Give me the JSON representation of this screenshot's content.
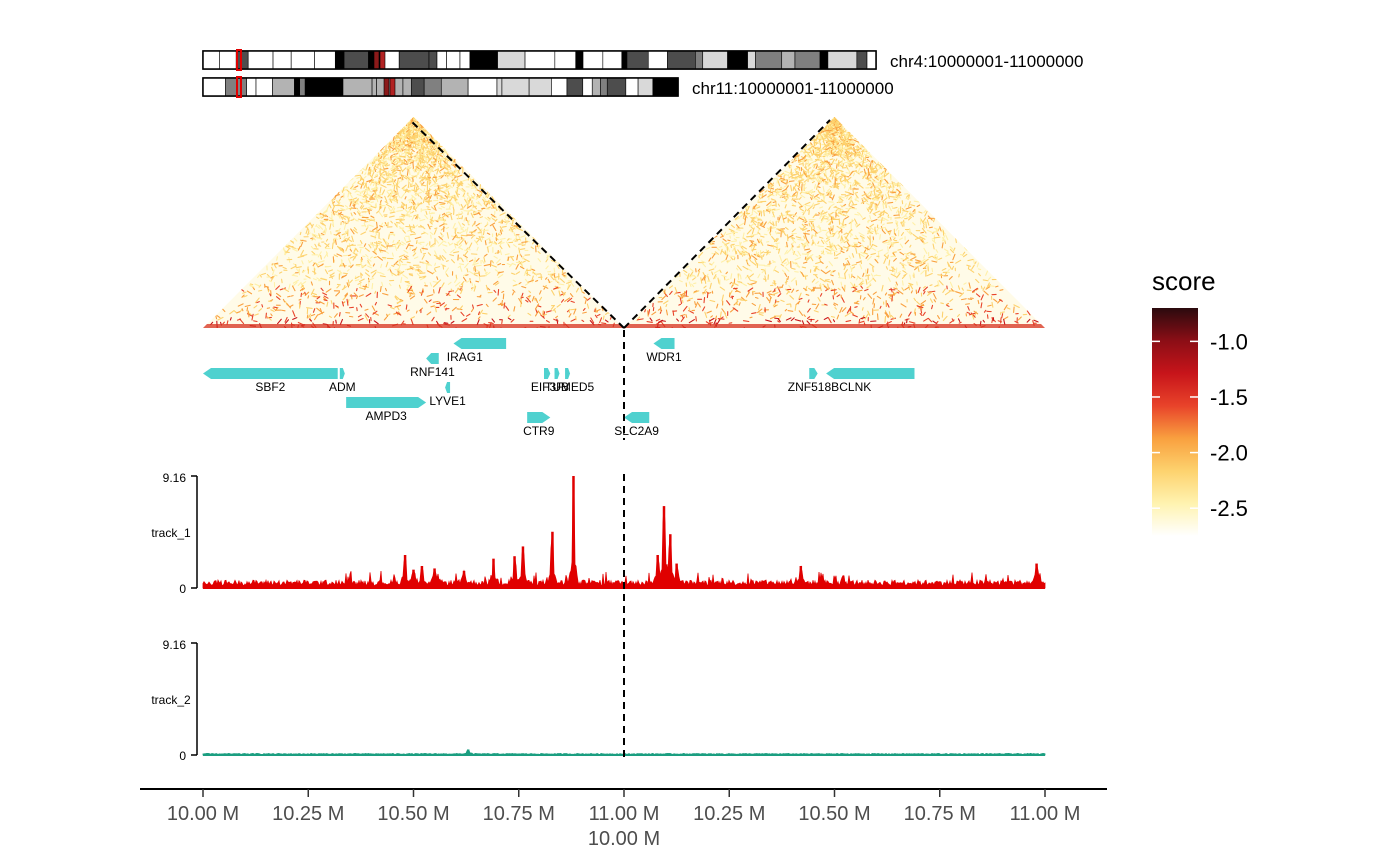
{
  "chart_data": {
    "type": "genome-browser",
    "ideograms": [
      {
        "region": "chr4:10000001-11000000"
      },
      {
        "region": "chr11:10000001-11000000"
      }
    ],
    "heatmap": {
      "legend_title": "score",
      "scale_ticks": [
        -1.0,
        -1.5,
        -2.0,
        -2.5
      ],
      "scale_tick_labels": [
        "-1.0",
        "-1.5",
        "-2.0",
        "-2.5"
      ],
      "range": [
        -2.75,
        -0.7
      ],
      "colors": [
        "#ffffff",
        "#fff3b0",
        "#fdd26e",
        "#f9a03f",
        "#e8432a",
        "#c7141a",
        "#8b0e16",
        "#2b0a0e"
      ]
    },
    "genes": [
      {
        "name": "SBF2",
        "start": 10.0,
        "end": 10.32,
        "strand": "-",
        "row": 1,
        "segment": 0
      },
      {
        "name": "ADM",
        "start": 10.325,
        "end": 10.33,
        "strand": "+",
        "row": 1,
        "segment": 0
      },
      {
        "name": "AMPD3",
        "start": 10.34,
        "end": 10.53,
        "strand": "+",
        "row": 2,
        "segment": 0
      },
      {
        "name": "RNF141",
        "start": 10.53,
        "end": 10.56,
        "strand": "-",
        "row": 0.5,
        "segment": 0
      },
      {
        "name": "LYVE1",
        "start": 10.575,
        "end": 10.585,
        "strand": "-",
        "row": 1.5,
        "segment": 0
      },
      {
        "name": "IRAG1",
        "start": 10.595,
        "end": 10.72,
        "strand": "-",
        "row": 0,
        "segment": 0
      },
      {
        "name": "EIF3F",
        "start": 10.81,
        "end": 10.825,
        "strand": "+",
        "row": 1,
        "segment": 0
      },
      {
        "name": "TUB",
        "start": 10.835,
        "end": 10.84,
        "strand": "+",
        "row": 1,
        "segment": 0
      },
      {
        "name": "MED5",
        "start": 10.86,
        "end": 10.87,
        "strand": "+",
        "row": 1,
        "segment": 0
      },
      {
        "name": "CTR9",
        "start": 10.77,
        "end": 10.825,
        "strand": "+",
        "row": 3,
        "segment": 0
      },
      {
        "name": "SLC2A9",
        "start": 10.0,
        "end": 10.06,
        "strand": "-",
        "row": 3,
        "segment": 1
      },
      {
        "name": "WDR1",
        "start": 10.07,
        "end": 10.12,
        "strand": "-",
        "row": 0,
        "segment": 1
      },
      {
        "name": "ZNF518B",
        "start": 10.44,
        "end": 10.46,
        "strand": "+",
        "row": 1,
        "segment": 1
      },
      {
        "name": "CLNK",
        "start": 10.48,
        "end": 10.69,
        "strand": "-",
        "row": 1,
        "segment": 1
      }
    ],
    "tracks": [
      {
        "name": "track_1",
        "ymax_label": "9.16",
        "ymin_label": "0",
        "ylim": [
          0,
          9.16
        ],
        "color": "#e00000",
        "peaks": [
          {
            "segment": 0,
            "pos": 10.48,
            "value": 2.7
          },
          {
            "segment": 0,
            "pos": 10.5,
            "value": 1.5
          },
          {
            "segment": 0,
            "pos": 10.52,
            "value": 1.8
          },
          {
            "segment": 0,
            "pos": 10.55,
            "value": 1.6
          },
          {
            "segment": 0,
            "pos": 10.62,
            "value": 1.4
          },
          {
            "segment": 0,
            "pos": 10.69,
            "value": 2.4
          },
          {
            "segment": 0,
            "pos": 10.74,
            "value": 2.6
          },
          {
            "segment": 0,
            "pos": 10.76,
            "value": 3.4
          },
          {
            "segment": 0,
            "pos": 10.83,
            "value": 4.6
          },
          {
            "segment": 0,
            "pos": 10.88,
            "value": 9.16
          },
          {
            "segment": 1,
            "pos": 10.08,
            "value": 2.7
          },
          {
            "segment": 1,
            "pos": 10.095,
            "value": 6.7
          },
          {
            "segment": 1,
            "pos": 10.11,
            "value": 4.4
          },
          {
            "segment": 1,
            "pos": 10.125,
            "value": 2.0
          },
          {
            "segment": 1,
            "pos": 10.42,
            "value": 1.8
          },
          {
            "segment": 1,
            "pos": 10.98,
            "value": 2.0
          }
        ]
      },
      {
        "name": "track_2",
        "ymax_label": "9.16",
        "ymin_label": "0",
        "ylim": [
          0,
          9.16
        ],
        "color": "#1a9e80",
        "peaks": [
          {
            "segment": 0,
            "pos": 10.63,
            "value": 0.45
          }
        ]
      }
    ],
    "x_axis": {
      "segments": [
        {
          "start": 10.0,
          "end": 11.0
        },
        {
          "start": 10.0,
          "end": 11.0
        }
      ],
      "tick_labels": [
        "10.00 M",
        "10.25 M",
        "10.50 M",
        "10.75 M",
        "11.00 M",
        "10.25 M",
        "10.50 M",
        "10.75 M",
        "11.00 M"
      ],
      "junction_sublabel": "10.00 M"
    }
  }
}
